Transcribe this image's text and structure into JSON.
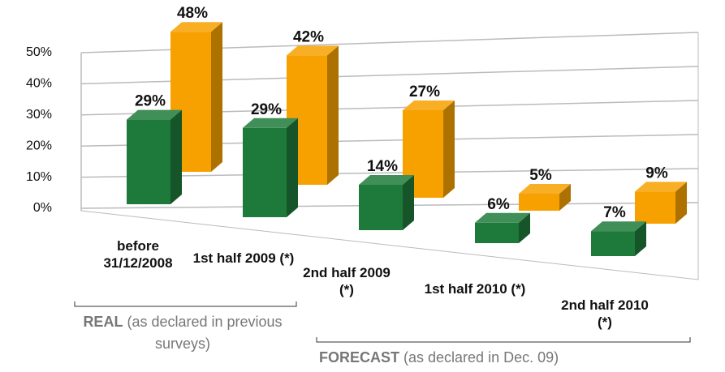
{
  "chart_data": {
    "type": "bar3d",
    "categories": [
      "before 31/12/2008",
      "1st half 2009 (*)",
      "2nd half 2009 (*)",
      "1st half 2010 (*)",
      "2nd half 2010 (*)"
    ],
    "series": [
      {
        "color": "#1e7a3a",
        "values": [
          29,
          29,
          14,
          6,
          7
        ],
        "value_labels": [
          "29%",
          "29%",
          "14%",
          "6%",
          "7%"
        ]
      },
      {
        "color": "#f7a100",
        "values": [
          48,
          42,
          27,
          5,
          9
        ],
        "value_labels": [
          "48%",
          "42%",
          "27%",
          "5%",
          "9%"
        ]
      }
    ],
    "ylim": [
      0,
      50
    ],
    "yticks": [
      {
        "value": 0,
        "label": "0%"
      },
      {
        "value": 10,
        "label": "10%"
      },
      {
        "value": 20,
        "label": "20%"
      },
      {
        "value": 30,
        "label": "30%"
      },
      {
        "value": 40,
        "label": "40%"
      },
      {
        "value": 50,
        "label": "50%"
      }
    ],
    "grid": true,
    "annotations": [
      {
        "label": "REAL",
        "text": "(as declared in previous surveys)"
      },
      {
        "label": "FORECAST",
        "text": "(as declared in Dec. 09)"
      }
    ]
  }
}
